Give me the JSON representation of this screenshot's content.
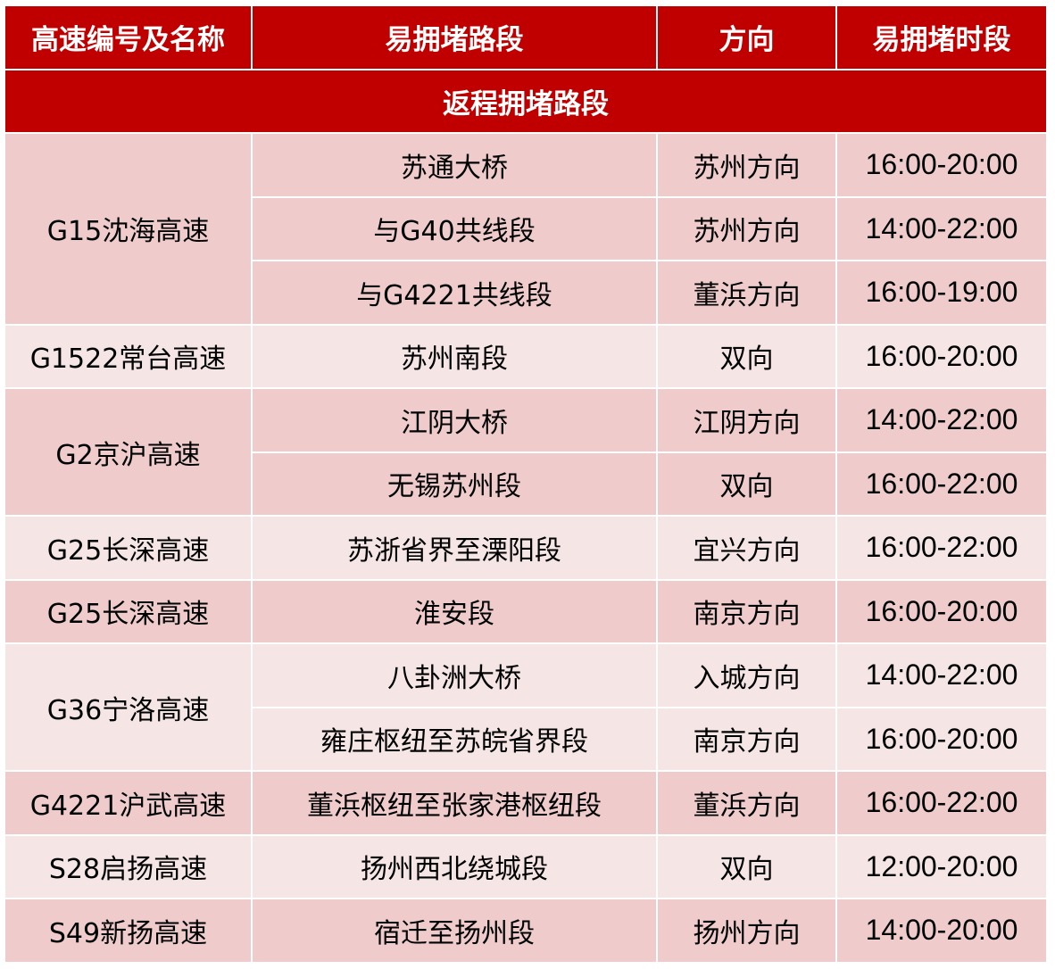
{
  "header": [
    "高速编号及名称",
    "易拥堵路段",
    "方向",
    "易拥堵时段"
  ],
  "section_title": "返程拥堵路段",
  "colors": {
    "header_bg": "#c00000",
    "row_dark": "#efcbcb",
    "row_light": "#f6e5e5"
  },
  "groups": [
    {
      "road": "G15沈海高速",
      "shade": "dark",
      "segments": [
        {
          "segment": "苏通大桥",
          "direction": "苏州方向",
          "time": "16:00-20:00"
        },
        {
          "segment": "与G40共线段",
          "direction": "苏州方向",
          "time": "14:00-22:00"
        },
        {
          "segment": "与G4221共线段",
          "direction": "董浜方向",
          "time": "16:00-19:00"
        }
      ]
    },
    {
      "road": "G1522常台高速",
      "shade": "light",
      "segments": [
        {
          "segment": "苏州南段",
          "direction": "双向",
          "time": "16:00-20:00"
        }
      ]
    },
    {
      "road": "G2京沪高速",
      "shade": "dark",
      "segments": [
        {
          "segment": "江阴大桥",
          "direction": "江阴方向",
          "time": "14:00-22:00"
        },
        {
          "segment": "无锡苏州段",
          "direction": "双向",
          "time": "16:00-22:00"
        }
      ]
    },
    {
      "road": "G25长深高速",
      "shade": "light",
      "segments": [
        {
          "segment": "苏浙省界至溧阳段",
          "direction": "宜兴方向",
          "time": "16:00-22:00"
        }
      ]
    },
    {
      "road": "G25长深高速",
      "shade": "dark",
      "segments": [
        {
          "segment": "淮安段",
          "direction": "南京方向",
          "time": "16:00-20:00"
        }
      ]
    },
    {
      "road": "G36宁洛高速",
      "shade": "light",
      "segments": [
        {
          "segment": "八卦洲大桥",
          "direction": "入城方向",
          "time": "14:00-22:00"
        },
        {
          "segment": "雍庄枢纽至苏皖省界段",
          "direction": "南京方向",
          "time": "16:00-20:00"
        }
      ]
    },
    {
      "road": "G4221沪武高速",
      "shade": "dark",
      "segments": [
        {
          "segment": "董浜枢纽至张家港枢纽段",
          "direction": "董浜方向",
          "time": "16:00-22:00"
        }
      ]
    },
    {
      "road": "S28启扬高速",
      "shade": "light",
      "segments": [
        {
          "segment": "扬州西北绕城段",
          "direction": "双向",
          "time": "12:00-20:00"
        }
      ]
    },
    {
      "road": "S49新扬高速",
      "shade": "dark",
      "segments": [
        {
          "segment": "宿迁至扬州段",
          "direction": "扬州方向",
          "time": "14:00-20:00"
        }
      ]
    }
  ]
}
